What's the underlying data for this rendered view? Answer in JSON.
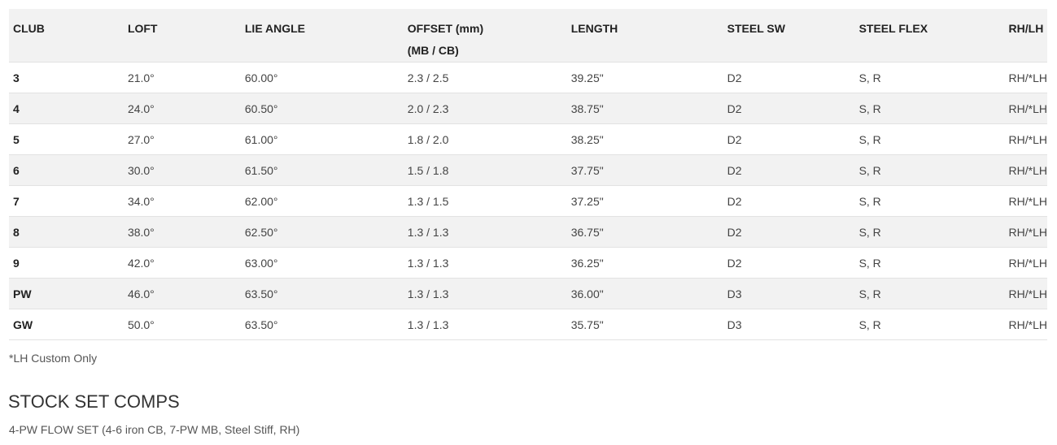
{
  "table": {
    "headers": [
      "CLUB",
      "LOFT",
      "LIE ANGLE",
      "OFFSET (mm)\n(MB / CB)",
      "LENGTH",
      "STEEL SW",
      "STEEL FLEX",
      "RH/LH"
    ],
    "rows": [
      [
        "3",
        "21.0°",
        "60.00°",
        "2.3 / 2.5",
        "39.25\"",
        "D2",
        "S, R",
        "RH/*LH"
      ],
      [
        "4",
        "24.0°",
        "60.50°",
        "2.0 / 2.3",
        "38.75\"",
        "D2",
        "S, R",
        "RH/*LH"
      ],
      [
        "5",
        "27.0°",
        "61.00°",
        "1.8 / 2.0",
        "38.25\"",
        "D2",
        "S, R",
        "RH/*LH"
      ],
      [
        "6",
        "30.0°",
        "61.50°",
        "1.5 / 1.8",
        "37.75\"",
        "D2",
        "S, R",
        "RH/*LH"
      ],
      [
        "7",
        "34.0°",
        "62.00°",
        "1.3 / 1.5",
        "37.25\"",
        "D2",
        "S, R",
        "RH/*LH"
      ],
      [
        "8",
        "38.0°",
        "62.50°",
        "1.3 / 1.3",
        "36.75\"",
        "D2",
        "S, R",
        "RH/*LH"
      ],
      [
        "9",
        "42.0°",
        "63.00°",
        "1.3 / 1.3",
        "36.25\"",
        "D2",
        "S, R",
        "RH/*LH"
      ],
      [
        "PW",
        "46.0°",
        "63.50°",
        "1.3 / 1.3",
        "36.00\"",
        "D3",
        "S, R",
        "RH/*LH"
      ],
      [
        "GW",
        "50.0°",
        "63.50°",
        "1.3 / 1.3",
        "35.75\"",
        "D3",
        "S, R",
        "RH/*LH"
      ]
    ]
  },
  "note": "*LH Custom Only",
  "stock_set": {
    "heading": "STOCK SET COMPS",
    "text": "4-PW FLOW SET (4-6 iron CB, 7-PW MB, Steel Stiff, RH)"
  }
}
